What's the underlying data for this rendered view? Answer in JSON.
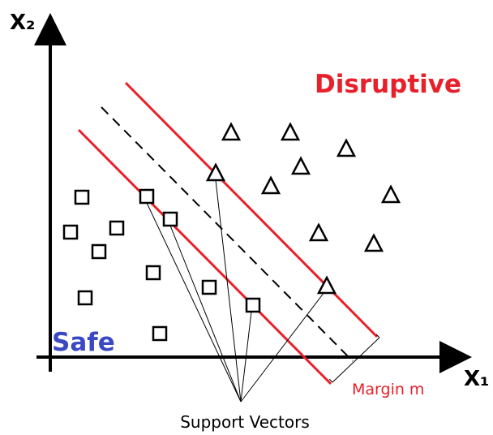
{
  "labels": {
    "x2_axis": "X₂",
    "x1_axis": "X₁",
    "class_top": "Disruptive",
    "class_bottom": "Safe",
    "margin": "Margin m",
    "support_vectors": "Support Vectors"
  }
}
